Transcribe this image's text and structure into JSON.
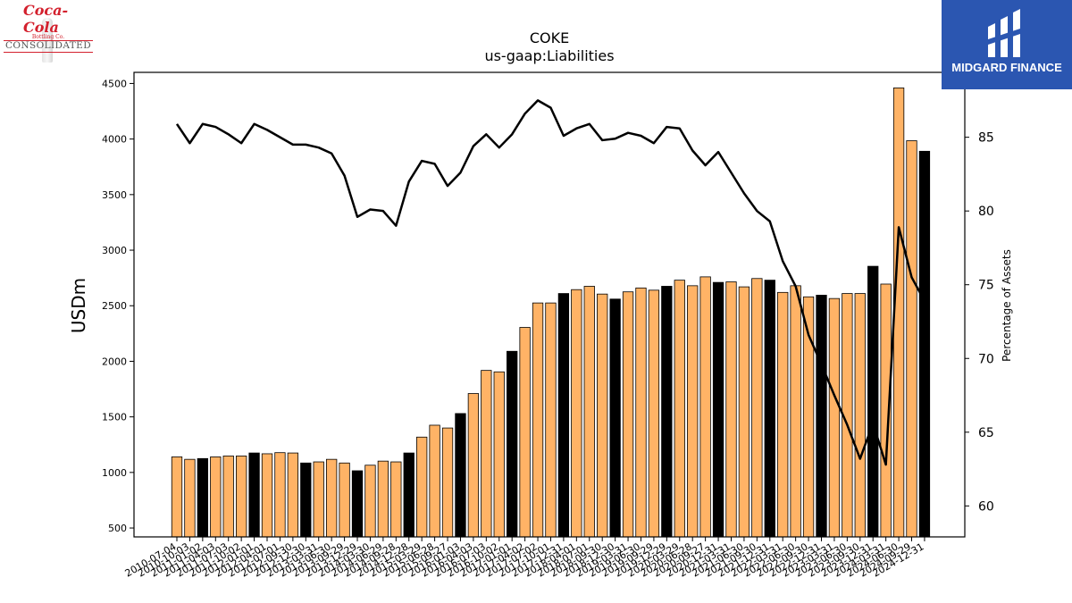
{
  "brand_left": {
    "script_text": "Coca-Cola",
    "small_text": "Bottling Co.",
    "wordmark": "CONSOLIDATED"
  },
  "brand_right": {
    "name": "MIDGARD FINANCE",
    "bg_color": "#2b56b1"
  },
  "chart_data": {
    "type": "bar",
    "title": "COKE",
    "subtitle": "us-gaap:Liabilities",
    "ylabel": "USDm",
    "y2label": "Percentage of Assets",
    "ylim": [
      420,
      4600
    ],
    "y2lim": [
      57.9,
      89.4
    ],
    "yticks": [
      500,
      1000,
      1500,
      2000,
      2500,
      3000,
      3500,
      4000,
      4500
    ],
    "y2ticks": [
      60,
      65,
      70,
      75,
      80,
      85
    ],
    "colors": {
      "quarter": "#ffb366",
      "annual": "#000000",
      "line": "#000000"
    },
    "categories": [
      "2010-07-04",
      "2010-10-03",
      "2011-01-02",
      "2011-04-03",
      "2011-07-03",
      "2011-10-02",
      "2012-01-01",
      "2012-04-01",
      "2012-07-01",
      "2012-09-30",
      "2012-12-30",
      "2013-03-31",
      "2013-06-30",
      "2013-09-29",
      "2013-12-29",
      "2014-03-30",
      "2014-06-29",
      "2014-09-28",
      "2014-12-28",
      "2015-03-29",
      "2015-06-28",
      "2015-09-27",
      "2016-01-03",
      "2016-04-03",
      "2016-07-03",
      "2016-10-02",
      "2017-01-01",
      "2017-04-02",
      "2017-07-02",
      "2017-10-01",
      "2017-12-31",
      "2018-04-01",
      "2018-07-01",
      "2018-09-30",
      "2018-12-30",
      "2019-03-31",
      "2019-06-30",
      "2019-09-29",
      "2019-12-29",
      "2020-03-29",
      "2020-06-28",
      "2020-09-27",
      "2020-12-31",
      "2021-03-31",
      "2021-06-30",
      "2021-09-30",
      "2021-12-31",
      "2022-03-31",
      "2022-06-30",
      "2022-09-30",
      "2022-12-31",
      "2023-03-31",
      "2023-06-30",
      "2023-09-30",
      "2023-12-31",
      "2024-03-31",
      "2024-06-30",
      "2024-09-29",
      "2024-12-31"
    ],
    "values": [
      1140,
      1118,
      1125,
      1140,
      1148,
      1148,
      1175,
      1168,
      1178,
      1175,
      1085,
      1095,
      1118,
      1085,
      1015,
      1065,
      1102,
      1095,
      1175,
      1318,
      1425,
      1400,
      1530,
      1710,
      1918,
      1905,
      2090,
      2305,
      2525,
      2525,
      2610,
      2645,
      2675,
      2605,
      2560,
      2625,
      2660,
      2640,
      2675,
      2730,
      2680,
      2760,
      2710,
      2715,
      2670,
      2745,
      2730,
      2620,
      2680,
      2580,
      2595,
      2565,
      2610,
      2610,
      2855,
      2695,
      4460,
      3985,
      3890
    ],
    "annual": [
      false,
      false,
      true,
      false,
      false,
      false,
      true,
      false,
      false,
      false,
      true,
      false,
      false,
      false,
      true,
      false,
      false,
      false,
      true,
      false,
      false,
      false,
      true,
      false,
      false,
      false,
      true,
      false,
      false,
      false,
      true,
      false,
      false,
      false,
      true,
      false,
      false,
      false,
      true,
      false,
      false,
      false,
      true,
      false,
      false,
      false,
      true,
      false,
      false,
      false,
      true,
      false,
      false,
      false,
      true,
      false,
      false,
      false,
      true
    ],
    "line_values": [
      85.9,
      84.6,
      85.9,
      85.7,
      85.2,
      84.6,
      85.9,
      85.5,
      85.0,
      84.5,
      84.5,
      84.3,
      83.9,
      82.4,
      79.6,
      80.1,
      80.0,
      79.0,
      82.0,
      83.4,
      83.2,
      81.7,
      82.6,
      84.4,
      85.2,
      84.3,
      85.2,
      86.6,
      87.5,
      87.0,
      85.1,
      85.6,
      85.9,
      84.8,
      84.9,
      85.3,
      85.1,
      84.6,
      85.7,
      85.6,
      84.1,
      83.1,
      84.0,
      82.6,
      81.2,
      80.0,
      79.3,
      76.6,
      74.9,
      71.6,
      69.6,
      67.5,
      65.5,
      63.2,
      65.6,
      62.8,
      78.9,
      75.5,
      73.9
    ],
    "grid": false,
    "legend": "none"
  }
}
